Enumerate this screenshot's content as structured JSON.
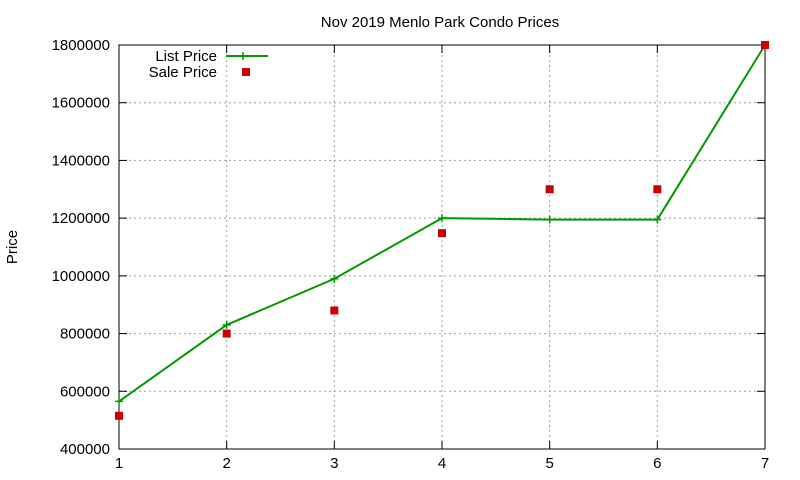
{
  "chart_data": {
    "type": "line",
    "title": "Nov 2019 Menlo Park Condo Prices",
    "xlabel": "",
    "ylabel": "Price",
    "xlim": [
      1,
      7
    ],
    "ylim": [
      400000,
      1800000
    ],
    "xticks": [
      "1",
      "2",
      "3",
      "4",
      "5",
      "6",
      "7"
    ],
    "yticks": [
      "400000",
      "600000",
      "800000",
      "1000000",
      "1200000",
      "1400000",
      "1600000",
      "1800000"
    ],
    "grid": true,
    "legend_position": "top-left",
    "series": [
      {
        "name": "List Price",
        "style": "line-with-plus-markers",
        "color": "#009900",
        "x": [
          1,
          2,
          3,
          4,
          5,
          6,
          7
        ],
        "y": [
          565000,
          830000,
          990000,
          1200000,
          1195000,
          1195000,
          1800000
        ]
      },
      {
        "name": "Sale Price",
        "style": "square-markers",
        "color": "#cc0000",
        "x": [
          1,
          2,
          3,
          4,
          5,
          6,
          7
        ],
        "y": [
          515000,
          800000,
          880000,
          1148000,
          1300000,
          1300000,
          1800000
        ]
      }
    ]
  }
}
